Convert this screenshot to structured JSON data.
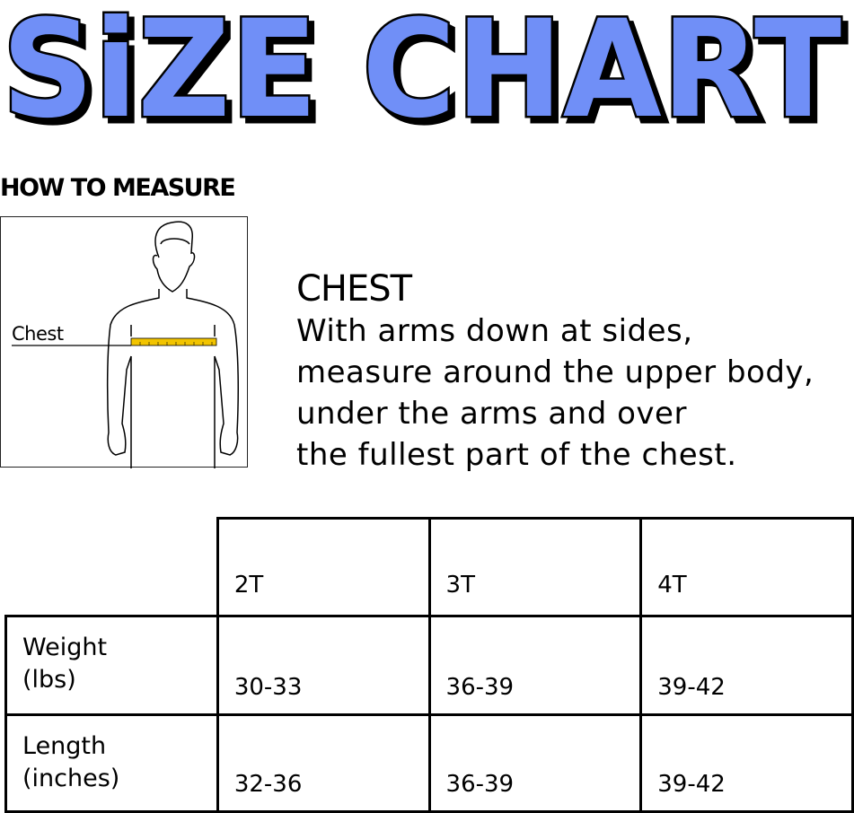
{
  "title": "SiZE CHART",
  "title_color": "#6f8ff7",
  "how_to_measure": "HOW TO MEASURE",
  "figure": {
    "label": "Chest",
    "tape_color": "#f2c400"
  },
  "description": {
    "heading": "CHEST",
    "lines": [
      "With arms down at sides,",
      "measure around the upper body,",
      "under the arms and over",
      "the fullest part of the chest."
    ]
  },
  "table": {
    "columns": [
      "2T",
      "3T",
      "4T"
    ],
    "rows": [
      {
        "label_1": "Weight",
        "label_2": "(lbs)",
        "values": [
          "30-33",
          "36-39",
          "39-42"
        ]
      },
      {
        "label_1": "Length",
        "label_2": "(inches)",
        "values": [
          "32-36",
          "36-39",
          "39-42"
        ]
      }
    ]
  }
}
